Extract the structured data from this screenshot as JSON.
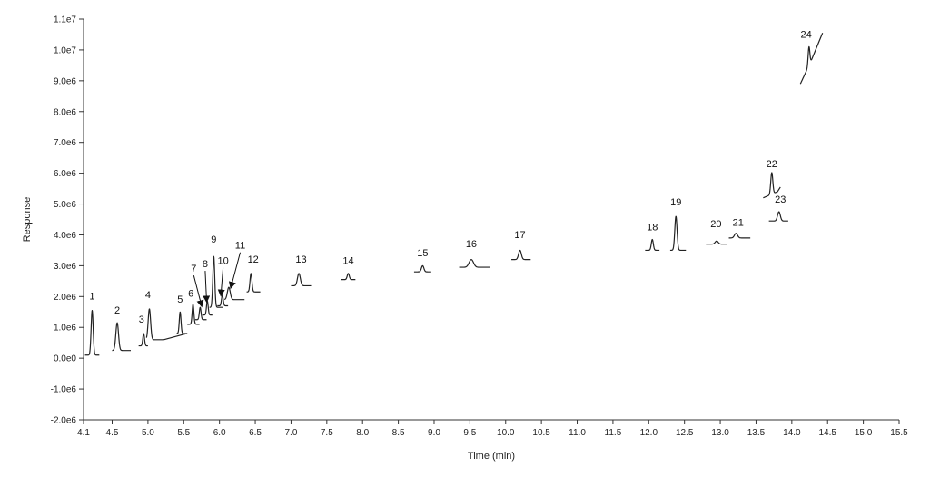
{
  "chart_data": {
    "type": "line",
    "title": "",
    "xlabel": "Time (min)",
    "ylabel": "Response",
    "xlim": [
      4.1,
      15.5
    ],
    "ylim": [
      -2000000,
      11000000
    ],
    "x_ticks": [
      4.1,
      4.5,
      5.0,
      5.5,
      6.0,
      6.5,
      7.0,
      7.5,
      8.0,
      8.5,
      9.0,
      9.5,
      10.0,
      10.5,
      11.0,
      11.5,
      12.0,
      12.5,
      13.0,
      13.5,
      14.0,
      14.5,
      15.0,
      15.5
    ],
    "x_tick_labels": [
      "4.1",
      "4.5",
      "5.0",
      "5.5",
      "6.0",
      "6.5",
      "7.0",
      "7.5",
      "8.0",
      "8.5",
      "9.0",
      "9.5",
      "10.0",
      "10.5",
      "11.0",
      "11.5",
      "12.0",
      "12.5",
      "13.0",
      "13.5",
      "14.0",
      "14.5",
      "15.0",
      "15.5"
    ],
    "y_ticks": [
      -2000000,
      -1000000,
      0,
      1000000,
      2000000,
      3000000,
      4000000,
      5000000,
      6000000,
      7000000,
      8000000,
      9000000,
      10000000,
      11000000
    ],
    "y_tick_labels": [
      "-2.0e6",
      "-1.0e6",
      "0.0e0",
      "1.0e6",
      "2.0e6",
      "3.0e6",
      "4.0e6",
      "5.0e6",
      "6.0e6",
      "7.0e6",
      "8.0e6",
      "9.0e6",
      "1.0e7",
      "1.1e7"
    ],
    "grid": false,
    "legend": "none",
    "line_color": "#222222",
    "peaks": [
      {
        "label": "1",
        "rt": 4.22,
        "base": 100000,
        "height": 1450000,
        "start": 4.12,
        "end": 4.32,
        "label_x": 4.22,
        "label_y": 1900000
      },
      {
        "label": "2",
        "rt": 4.57,
        "base": 250000,
        "height": 900000,
        "start": 4.5,
        "end": 4.76,
        "label_x": 4.57,
        "label_y": 1450000
      },
      {
        "label": "3",
        "rt": 4.94,
        "base": 400000,
        "height": 400000,
        "start": 4.87,
        "end": 5.0,
        "label_x": 4.91,
        "label_y": 1150000
      },
      {
        "label": "4",
        "rt": 5.02,
        "base": 600000,
        "height": 1000000,
        "start": 4.98,
        "end": 5.22,
        "label_x": 5.0,
        "label_y": 1950000,
        "tail_x": 5.54,
        "tail_y": 800000
      },
      {
        "label": "5",
        "rt": 5.45,
        "base": 800000,
        "height": 700000,
        "start": 5.4,
        "end": 5.55,
        "label_x": 5.45,
        "label_y": 1800000
      },
      {
        "label": "6",
        "rt": 5.63,
        "base": 1100000,
        "height": 650000,
        "start": 5.55,
        "end": 5.72,
        "label_x": 5.6,
        "label_y": 2000000
      },
      {
        "label": "7",
        "rt": 5.73,
        "base": 1250000,
        "height": 400000,
        "start": 5.66,
        "end": 5.82,
        "label_x": 5.64,
        "label_y": 2800000,
        "arrow_to_x": 5.75,
        "arrow_to_y": 1700000
      },
      {
        "label": "8",
        "rt": 5.83,
        "base": 1400000,
        "height": 450000,
        "start": 5.76,
        "end": 5.9,
        "label_x": 5.8,
        "label_y": 2950000,
        "arrow_to_x": 5.82,
        "arrow_to_y": 1850000
      },
      {
        "label": "9",
        "rt": 5.92,
        "base": 1650000,
        "height": 1650000,
        "start": 5.86,
        "end": 6.05,
        "label_x": 5.92,
        "label_y": 3750000
      },
      {
        "label": "10",
        "rt": 6.04,
        "base": 1700000,
        "height": 350000,
        "start": 5.97,
        "end": 6.12,
        "label_x": 6.05,
        "label_y": 3050000,
        "arrow_to_x": 6.02,
        "arrow_to_y": 2050000
      },
      {
        "label": "11",
        "rt": 6.13,
        "base": 1900000,
        "height": 400000,
        "start": 6.07,
        "end": 6.35,
        "label_x": 6.29,
        "label_y": 3550000,
        "arrow_to_x": 6.16,
        "arrow_to_y": 2300000
      },
      {
        "label": "12",
        "rt": 6.44,
        "base": 2150000,
        "height": 600000,
        "start": 6.38,
        "end": 6.57,
        "label_x": 6.47,
        "label_y": 3100000
      },
      {
        "label": "13",
        "rt": 7.11,
        "base": 2350000,
        "height": 400000,
        "start": 7.0,
        "end": 7.28,
        "label_x": 7.14,
        "label_y": 3100000
      },
      {
        "label": "14",
        "rt": 7.8,
        "base": 2550000,
        "height": 200000,
        "start": 7.7,
        "end": 7.9,
        "label_x": 7.8,
        "label_y": 3050000
      },
      {
        "label": "15",
        "rt": 8.84,
        "base": 2800000,
        "height": 200000,
        "start": 8.72,
        "end": 8.96,
        "label_x": 8.84,
        "label_y": 3300000
      },
      {
        "label": "16",
        "rt": 9.52,
        "base": 2950000,
        "height": 250000,
        "start": 9.35,
        "end": 9.78,
        "label_x": 9.52,
        "label_y": 3600000
      },
      {
        "label": "17",
        "rt": 10.2,
        "base": 3200000,
        "height": 300000,
        "start": 10.08,
        "end": 10.35,
        "label_x": 10.2,
        "label_y": 3900000
      },
      {
        "label": "18",
        "rt": 12.05,
        "base": 3500000,
        "height": 350000,
        "start": 11.95,
        "end": 12.15,
        "label_x": 12.05,
        "label_y": 4150000
      },
      {
        "label": "19",
        "rt": 12.38,
        "base": 3500000,
        "height": 1100000,
        "start": 12.3,
        "end": 12.52,
        "label_x": 12.38,
        "label_y": 4950000
      },
      {
        "label": "20",
        "rt": 12.95,
        "base": 3700000,
        "height": 100000,
        "start": 12.8,
        "end": 13.1,
        "label_x": 12.94,
        "label_y": 4250000
      },
      {
        "label": "21",
        "rt": 13.22,
        "base": 3900000,
        "height": 150000,
        "start": 13.12,
        "end": 13.42,
        "label_x": 13.25,
        "label_y": 4300000
      },
      {
        "label": "22",
        "rt": 13.72,
        "base": 5200000,
        "height": 700000,
        "start": 13.6,
        "end": 13.8,
        "label_x": 13.72,
        "label_y": 6200000,
        "tail_x": 13.84,
        "tail_y": 5550000,
        "base_end": 5400000
      },
      {
        "label": "23",
        "rt": 13.82,
        "base": 4450000,
        "height": 300000,
        "start": 13.68,
        "end": 13.95,
        "label_x": 13.84,
        "label_y": 5050000
      },
      {
        "label": "24",
        "rt": 14.24,
        "base": 8900000,
        "height": 600000,
        "start": 14.12,
        "end": 14.28,
        "label_x": 14.2,
        "label_y": 10400000,
        "tail_x": 14.43,
        "tail_y": 10550000,
        "base_end": 9700000
      }
    ]
  }
}
